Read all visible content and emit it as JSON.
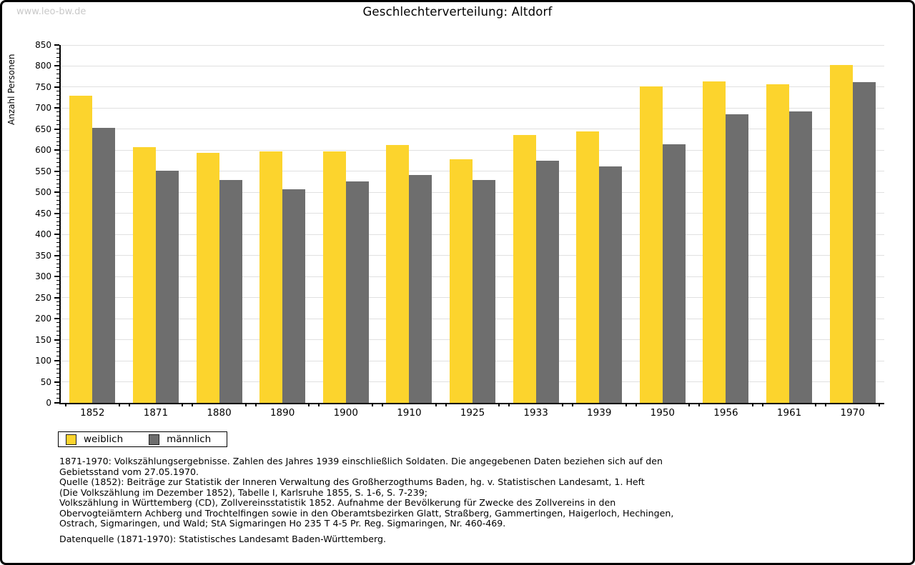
{
  "watermark": "www.leo-bw.de",
  "title": "Geschlechterverteilung: Altdorf",
  "chart_data": {
    "type": "bar",
    "title": "Geschlechterverteilung: Altdorf",
    "categories": [
      "1852",
      "1871",
      "1880",
      "1890",
      "1900",
      "1910",
      "1925",
      "1933",
      "1939",
      "1950",
      "1956",
      "1961",
      "1970"
    ],
    "series": [
      {
        "name": "weiblich",
        "color": "#FCD42D",
        "values": [
          730,
          607,
          594,
          598,
          598,
          612,
          578,
          637,
          645,
          752,
          763,
          757,
          802
        ]
      },
      {
        "name": "männlich",
        "color": "#6E6E6E",
        "values": [
          654,
          551,
          529,
          508,
          526,
          542,
          530,
          576,
          561,
          614,
          685,
          692,
          762
        ]
      }
    ],
    "xlabel": "",
    "ylabel": "Anzahl Personen",
    "ylim": [
      0,
      850
    ],
    "y_major_step": 50,
    "y_minor_step": 10,
    "grid": true,
    "gridline_color": "#e0e0e0",
    "legend_position": "below-chart-left"
  },
  "footer": {
    "lines": [
      "1871-1970: Volkszählungsergebnisse. Zahlen des Jahres 1939 einschließlich Soldaten. Die angegebenen Daten beziehen sich auf den",
      "Gebietsstand vom 27.05.1970.",
      "Quelle (1852): Beiträge zur Statistik der Inneren Verwaltung des Großherzogthums Baden, hg. v. Statistischen Landesamt, 1. Heft",
      "(Die Volkszählung im Dezember 1852), Tabelle I, Karlsruhe 1855, S. 1-6, S. 7-239;",
      "Volkszählung in Württemberg (CD), Zollvereinsstatistik 1852. Aufnahme der Bevölkerung für Zwecke des Zollvereins in den",
      "Obervogteiämtern Achberg und Trochtelfingen sowie in den Oberamtsbezirken Glatt, Straßberg, Gammertingen, Haigerloch, Hechingen,",
      "Ostrach, Sigmaringen, und Wald; StA Sigmaringen Ho 235 T 4-5 Pr. Reg. Sigmaringen, Nr. 460-469."
    ],
    "datasource": "Datenquelle (1871-1970): Statistisches Landesamt Baden-Württemberg."
  }
}
